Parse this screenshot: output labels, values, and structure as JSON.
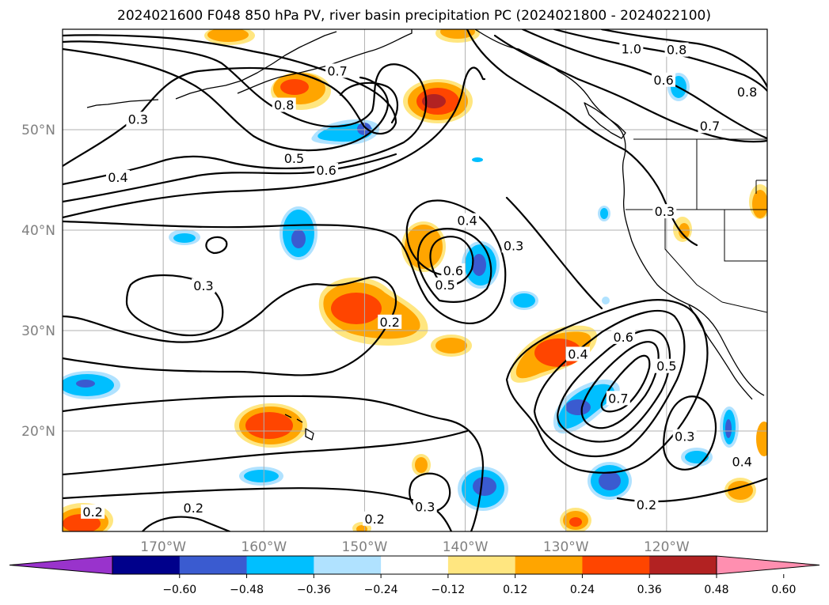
{
  "title": "2024021600 F048 850 hPa PV, river basin precipitation PC (2024021800 - 2024022100)",
  "map": {
    "lon_range": [
      -180,
      -110
    ],
    "lat_range": [
      10,
      60
    ],
    "lon_ticks": [
      {
        "lon": -170,
        "label": "170°W"
      },
      {
        "lon": -160,
        "label": "160°W"
      },
      {
        "lon": -150,
        "label": "150°W"
      },
      {
        "lon": -140,
        "label": "140°W"
      },
      {
        "lon": -130,
        "label": "130°W"
      },
      {
        "lon": -120,
        "label": "120°W"
      }
    ],
    "lat_ticks": [
      {
        "lat": 20,
        "label": "20°N"
      },
      {
        "lat": 30,
        "label": "30°N"
      },
      {
        "lat": 40,
        "label": "40°N"
      },
      {
        "lat": 50,
        "label": "50°N"
      }
    ],
    "grid": true
  },
  "colorbar": {
    "extend": "both",
    "colors": [
      "#9933cc",
      "#00008b",
      "#3a5bd0",
      "#00bfff",
      "#b0e2ff",
      "#ffffff",
      "#ffe680",
      "#ffa500",
      "#ff4500",
      "#b22222",
      "#ff8fb0"
    ],
    "ticks": [
      "−0.60",
      "−0.48",
      "−0.36",
      "−0.24",
      "−0.12",
      "0.12",
      "0.24",
      "0.36",
      "0.48",
      "0.60"
    ]
  },
  "contour_labels": [
    {
      "text": "0.7",
      "lon": -152.7,
      "lat": 55.8
    },
    {
      "text": "0.8",
      "lon": -158.0,
      "lat": 52.4
    },
    {
      "text": "0.3",
      "lon": -172.5,
      "lat": 51.0
    },
    {
      "text": "0.5",
      "lon": -157.0,
      "lat": 47.1
    },
    {
      "text": "0.6",
      "lon": -153.8,
      "lat": 45.9
    },
    {
      "text": "0.4",
      "lon": -174.5,
      "lat": 45.2
    },
    {
      "text": "1.0",
      "lon": -123.5,
      "lat": 58.0
    },
    {
      "text": "0.8",
      "lon": -119.0,
      "lat": 57.9
    },
    {
      "text": "0.6",
      "lon": -120.3,
      "lat": 54.9
    },
    {
      "text": "0.8",
      "lon": -112.0,
      "lat": 53.7
    },
    {
      "text": "0.7",
      "lon": -115.7,
      "lat": 50.3
    },
    {
      "text": "0.3",
      "lon": -120.2,
      "lat": 41.8
    },
    {
      "text": "0.4",
      "lon": -139.8,
      "lat": 40.9
    },
    {
      "text": "0.3",
      "lon": -135.2,
      "lat": 38.4
    },
    {
      "text": "0.6",
      "lon": -141.2,
      "lat": 35.9
    },
    {
      "text": "0.5",
      "lon": -142.0,
      "lat": 34.5
    },
    {
      "text": "0.3",
      "lon": -166.0,
      "lat": 34.4
    },
    {
      "text": "0.2",
      "lon": -147.5,
      "lat": 30.8
    },
    {
      "text": "0.4",
      "lon": -128.8,
      "lat": 27.6
    },
    {
      "text": "0.6",
      "lon": -124.3,
      "lat": 29.3
    },
    {
      "text": "0.5",
      "lon": -120.0,
      "lat": 26.4
    },
    {
      "text": "0.7",
      "lon": -124.8,
      "lat": 23.2
    },
    {
      "text": "0.3",
      "lon": -118.2,
      "lat": 19.4
    },
    {
      "text": "0.4",
      "lon": -112.5,
      "lat": 16.9
    },
    {
      "text": "0.2",
      "lon": -122.0,
      "lat": 12.6
    },
    {
      "text": "0.2",
      "lon": -167.0,
      "lat": 12.3
    },
    {
      "text": "0.2",
      "lon": -177.0,
      "lat": 11.9
    },
    {
      "text": "0.3",
      "lon": -144.0,
      "lat": 12.4
    },
    {
      "text": "0.2",
      "lon": -149.0,
      "lat": 11.2
    }
  ]
}
